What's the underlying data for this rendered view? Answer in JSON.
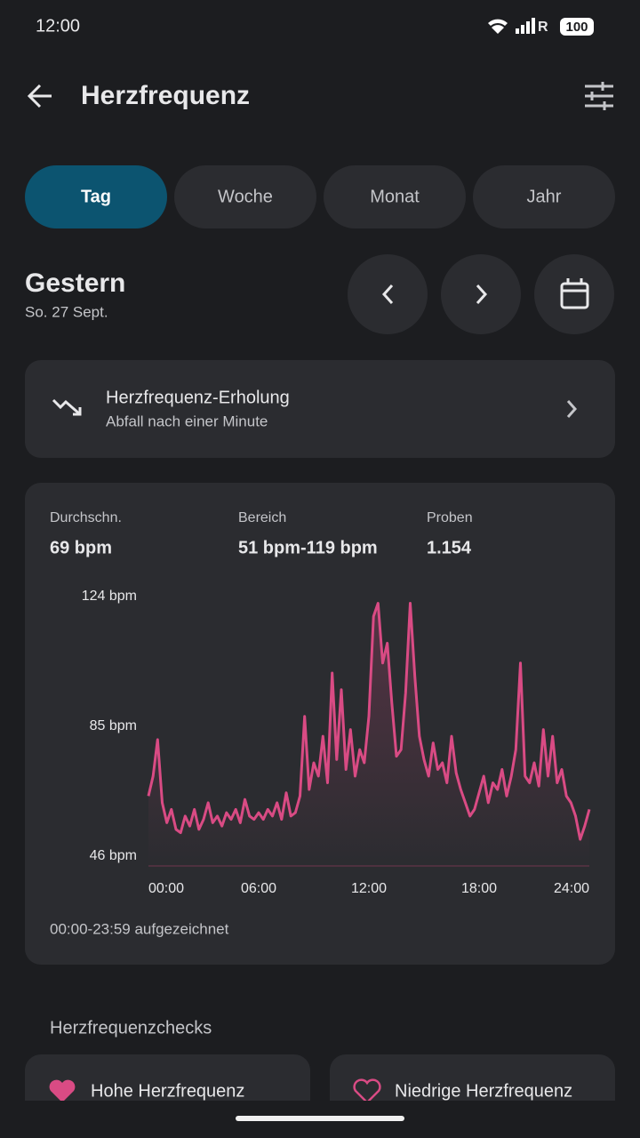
{
  "status_bar": {
    "time": "12:00",
    "network": "R",
    "battery": "100"
  },
  "header": {
    "title": "Herzfrequenz"
  },
  "tabs": [
    "Tag",
    "Woche",
    "Monat",
    "Jahr"
  ],
  "date": {
    "title": "Gestern",
    "subtitle": "So. 27 Sept."
  },
  "recovery_card": {
    "title": "Herzfrequenz-Erholung",
    "subtitle": "Abfall nach einer Minute"
  },
  "stats": [
    {
      "label": "Durchschn.",
      "value": "69 bpm"
    },
    {
      "label": "Bereich",
      "value": "51 bpm-119 bpm"
    },
    {
      "label": "Proben",
      "value": "1.154"
    }
  ],
  "chart_data": {
    "type": "line",
    "color": "#d94b84",
    "grid": false,
    "x": [
      0,
      0.25,
      0.5,
      0.75,
      1,
      1.25,
      1.5,
      1.75,
      2,
      2.25,
      2.5,
      2.75,
      3,
      3.25,
      3.5,
      3.75,
      4,
      4.25,
      4.5,
      4.75,
      5,
      5.25,
      5.5,
      5.75,
      6,
      6.25,
      6.5,
      6.75,
      7,
      7.25,
      7.5,
      7.75,
      8,
      8.25,
      8.5,
      8.75,
      9,
      9.25,
      9.5,
      9.75,
      10,
      10.25,
      10.5,
      10.75,
      11,
      11.25,
      11.5,
      11.75,
      12,
      12.25,
      12.5,
      12.75,
      13,
      13.25,
      13.5,
      13.75,
      14,
      14.25,
      14.5,
      14.75,
      15,
      15.25,
      15.5,
      15.75,
      16,
      16.25,
      16.5,
      16.75,
      17,
      17.25,
      17.5,
      17.75,
      18,
      18.25,
      18.5,
      18.75,
      19,
      19.25,
      19.5,
      19.75,
      20,
      20.25,
      20.5,
      20.75,
      21,
      21.25,
      21.5,
      21.75,
      22,
      22.25,
      22.5,
      22.75,
      23,
      23.25,
      23.5,
      23.75,
      24
    ],
    "values": [
      64,
      70,
      81,
      62,
      56,
      60,
      54,
      53,
      58,
      55,
      60,
      54,
      57,
      62,
      56,
      58,
      55,
      59,
      57,
      60,
      56,
      63,
      58,
      57,
      59,
      57,
      60,
      58,
      62,
      57,
      65,
      58,
      59,
      64,
      88,
      66,
      74,
      70,
      82,
      68,
      101,
      75,
      96,
      72,
      84,
      70,
      78,
      74,
      88,
      118,
      122,
      104,
      110,
      92,
      76,
      78,
      95,
      122,
      100,
      82,
      75,
      70,
      80,
      72,
      74,
      68,
      82,
      71,
      66,
      62,
      58,
      60,
      65,
      70,
      62,
      68,
      66,
      72,
      64,
      70,
      78,
      104,
      70,
      68,
      74,
      67,
      84,
      70,
      82,
      68,
      72,
      64,
      62,
      58,
      51,
      55,
      60
    ],
    "xlim": [
      0,
      24
    ],
    "xticks": [
      {
        "value": 0,
        "label": "00:00"
      },
      {
        "value": 6,
        "label": "06:00"
      },
      {
        "value": 12,
        "label": "12:00"
      },
      {
        "value": 18,
        "label": "18:00"
      },
      {
        "value": 24,
        "label": "24:00"
      }
    ],
    "ylim": [
      43,
      124
    ],
    "yticks": [
      {
        "value": 124,
        "label": "124 bpm"
      },
      {
        "value": 85,
        "label": "85 bpm"
      },
      {
        "value": 46,
        "label": "46 bpm"
      }
    ]
  },
  "chart_footer": "00:00-23:59 aufgezeichnet",
  "checks": {
    "title": "Herzfrequenzchecks",
    "items": [
      "Hohe Herzfrequenz",
      "Niedrige Herzfrequenz"
    ]
  }
}
